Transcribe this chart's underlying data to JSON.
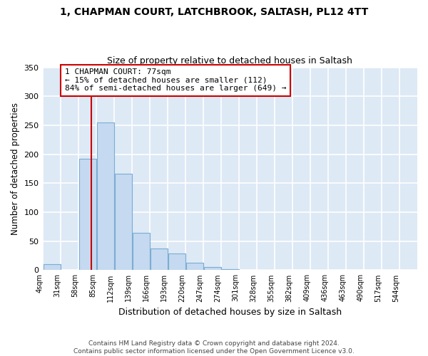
{
  "title_line1": "1, CHAPMAN COURT, LATCHBROOK, SALTASH, PL12 4TT",
  "title_line2": "Size of property relative to detached houses in Saltash",
  "xlabel": "Distribution of detached houses by size in Saltash",
  "ylabel": "Number of detached properties",
  "bin_edges": [
    4,
    31,
    58,
    85,
    112,
    139,
    166,
    193,
    220,
    247,
    274,
    301,
    328,
    355,
    382,
    409,
    436,
    463,
    490,
    517,
    544
  ],
  "bar_heights": [
    10,
    0,
    192,
    255,
    167,
    65,
    37,
    29,
    13,
    5,
    2,
    0,
    1,
    0,
    0,
    1,
    0,
    0,
    0,
    0
  ],
  "bar_color": "#c5d9f0",
  "bar_edge_color": "#7aadd4",
  "property_size": 77,
  "vline_color": "#cc0000",
  "annotation_text": "1 CHAPMAN COURT: 77sqm\n← 15% of detached houses are smaller (112)\n84% of semi-detached houses are larger (649) →",
  "annotation_box_color": "#ffffff",
  "annotation_box_edge": "#cc0000",
  "ylim": [
    0,
    350
  ],
  "fig_bg_color": "#ffffff",
  "plot_bg_color": "#dde9f5",
  "grid_color": "#ffffff",
  "footnote": "Contains HM Land Registry data © Crown copyright and database right 2024.\nContains public sector information licensed under the Open Government Licence v3.0.",
  "tick_labels": [
    "4sqm",
    "31sqm",
    "58sqm",
    "85sqm",
    "112sqm",
    "139sqm",
    "166sqm",
    "193sqm",
    "220sqm",
    "247sqm",
    "274sqm",
    "301sqm",
    "328sqm",
    "355sqm",
    "382sqm",
    "409sqm",
    "436sqm",
    "463sqm",
    "490sqm",
    "517sqm",
    "544sqm"
  ]
}
